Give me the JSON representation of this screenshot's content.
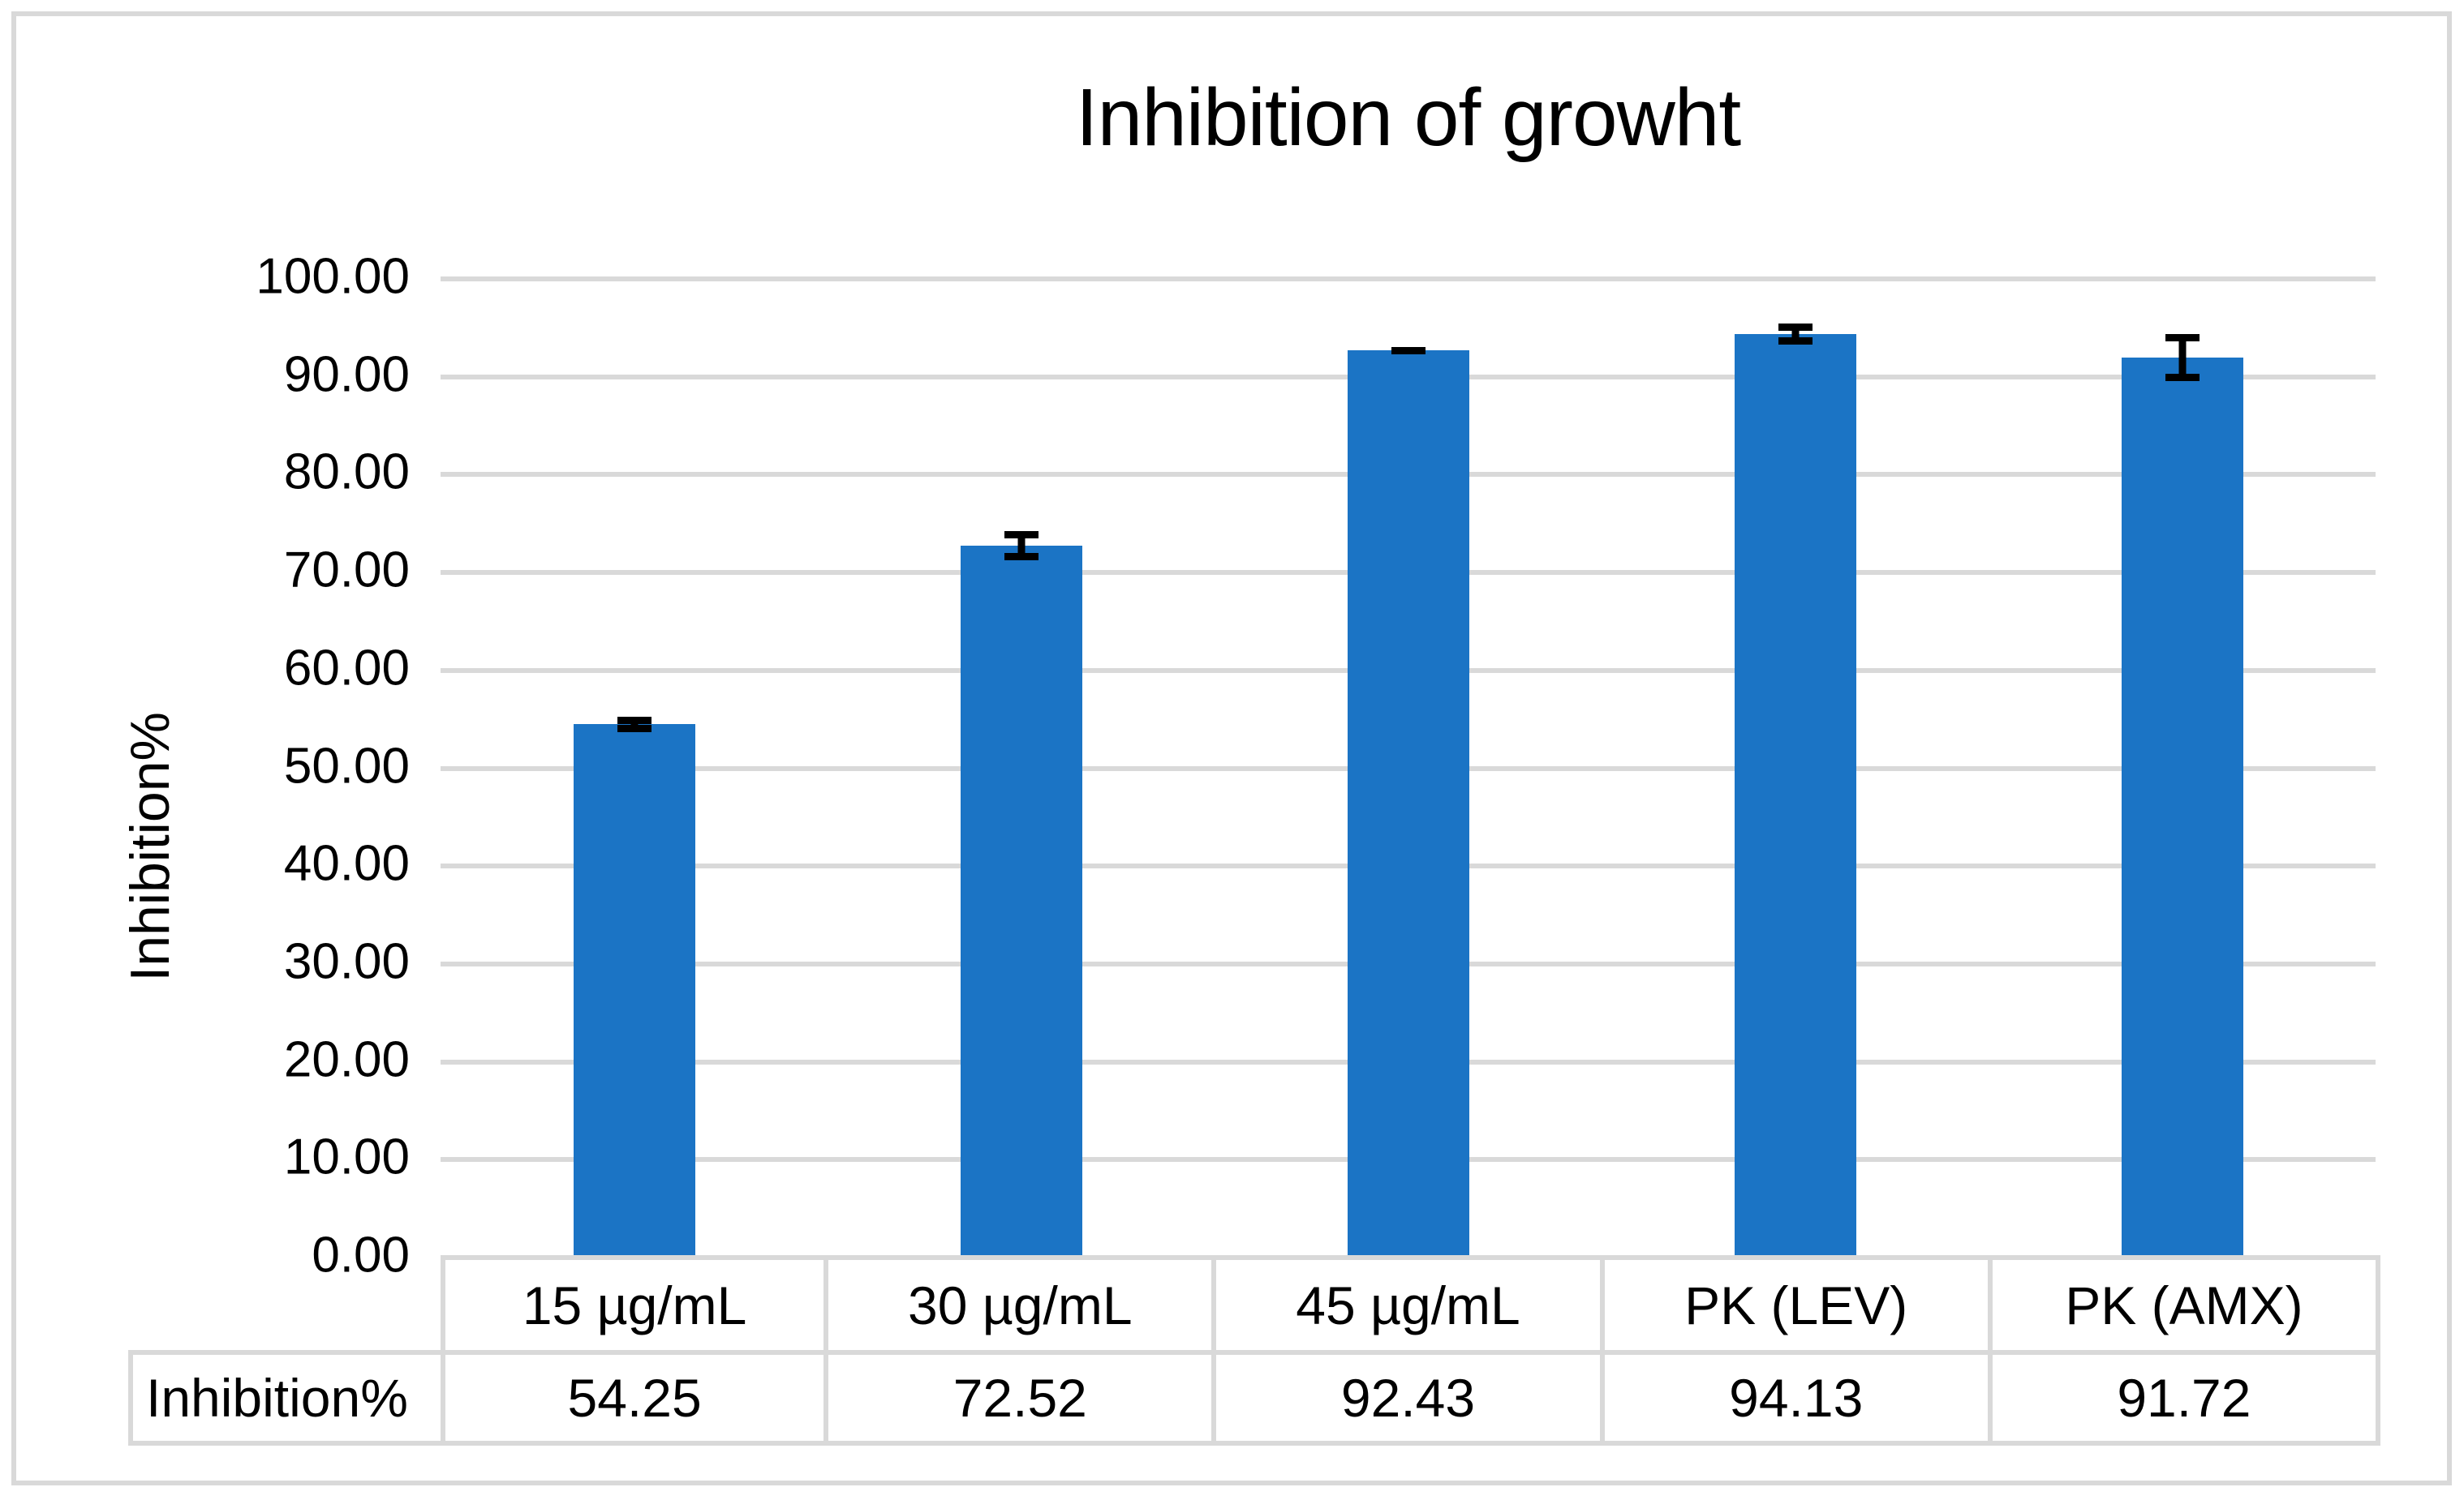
{
  "chart_data": {
    "type": "bar",
    "title": "Inhibition of growht",
    "ylabel": "Inhibition%",
    "series_name": "Inhibition%",
    "categories": [
      "15 µg/mL",
      "30 µg/mL",
      "45 µg/mL",
      "PK (LEV)",
      "PK (AMX)"
    ],
    "values": [
      54.25,
      72.52,
      92.43,
      94.13,
      91.72
    ],
    "value_labels": [
      "54.25",
      "72.52",
      "92.43",
      "94.13",
      "91.72"
    ],
    "error_bars": [
      0.8,
      1.5,
      0.4,
      1.1,
      2.4
    ],
    "ylim": [
      0,
      100
    ],
    "ytick_step": 10,
    "ytick_labels": [
      "100.00",
      "90.00",
      "80.00",
      "70.00",
      "60.00",
      "50.00",
      "40.00",
      "30.00",
      "20.00",
      "10.00",
      "0.00"
    ],
    "grid": true,
    "legend": "none",
    "data_table_shown": true,
    "colors": {
      "bar": "#1B74C5",
      "gridline": "#D9D9D9",
      "error_bar": "#000000",
      "text": "#000000",
      "table_border": "#D9D9D9",
      "background": "#FFFFFF"
    }
  }
}
